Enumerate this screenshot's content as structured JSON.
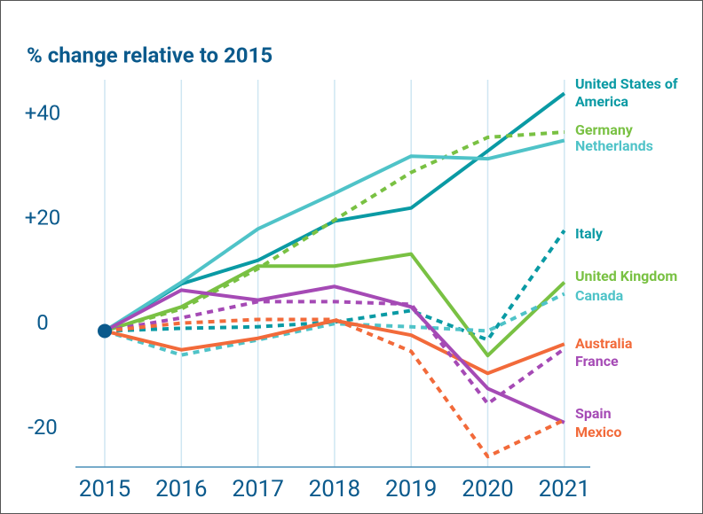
{
  "chart_data": {
    "type": "line",
    "title": "% change relative to 2015",
    "categories": [
      "2015",
      "2016",
      "2017",
      "2018",
      "2019",
      "2020",
      "2021"
    ],
    "ylim": [
      -26,
      48
    ],
    "yticks": [
      {
        "value": -20,
        "label": "-20"
      },
      0,
      {
        "value": 20,
        "label": "+20"
      },
      {
        "value": 40,
        "label": "+40"
      }
    ],
    "grid": true,
    "series": [
      {
        "name": "United States of America",
        "color": "#0a9aa4",
        "dashed": false,
        "values": [
          0,
          9,
          13.5,
          21,
          23.5,
          34.4,
          45.4
        ]
      },
      {
        "name": "Germany",
        "color": "#79c143",
        "dashed": true,
        "values": [
          0,
          4.2,
          11.9,
          21.2,
          30.3,
          37,
          38
        ]
      },
      {
        "name": "Netherlands",
        "color": "#4fc3c8",
        "dashed": false,
        "values": [
          0,
          9.3,
          19.5,
          26.3,
          33.4,
          32.9,
          36.4
        ]
      },
      {
        "name": "Italy",
        "color": "#0a9aa4",
        "dashed": true,
        "values": [
          0,
          0.5,
          0.8,
          1.7,
          3.9,
          -1.7,
          19.2
        ]
      },
      {
        "name": "United Kingdom",
        "color": "#79c143",
        "dashed": false,
        "values": [
          0,
          4.6,
          12.4,
          12.4,
          14.7,
          -4.7,
          9.3
        ]
      },
      {
        "name": "Canada",
        "color": "#4fc3c8",
        "dashed": true,
        "values": [
          0,
          -4.6,
          -1.7,
          1.4,
          0.8,
          0,
          7.1
        ]
      },
      {
        "name": "Australia",
        "color": "#f26a3a",
        "dashed": false,
        "values": [
          0,
          -3.6,
          -1.4,
          2,
          -0.8,
          -8.1,
          -2.5
        ]
      },
      {
        "name": "France",
        "color": "#a54ab5",
        "dashed": true,
        "values": [
          0,
          2.5,
          5.6,
          5.6,
          5.1,
          -13.9,
          -3.4
        ]
      },
      {
        "name": "Spain",
        "color": "#a54ab5",
        "dashed": false,
        "values": [
          0,
          7.8,
          5.9,
          8.5,
          4.6,
          -11,
          -17.5
        ]
      },
      {
        "name": "Mexico",
        "color": "#f26a3a",
        "dashed": true,
        "values": [
          0,
          1.5,
          2.2,
          2.2,
          -3.9,
          -24,
          -17
        ]
      }
    ]
  }
}
